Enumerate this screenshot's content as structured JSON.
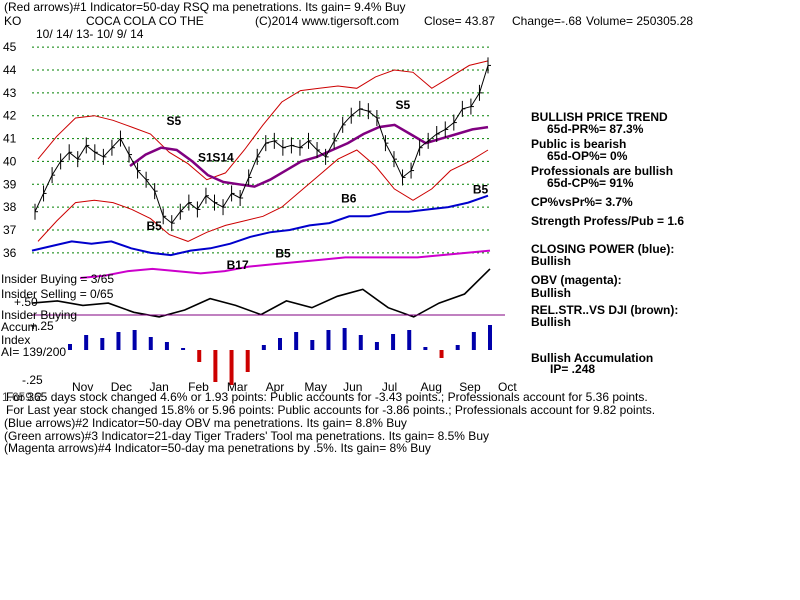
{
  "header": {
    "line1": "(Red arrows)#1 Indicator=50-day RSQ ma penetrations. Its gain= 9.4% Buy",
    "ticker": "KO",
    "company": "COCA COLA CO THE",
    "copyright": "(C)2014 www.tigersoft.com",
    "close_text": "Close=  43.87",
    "change_text": "Change=-.68",
    "volume_text": "Volume= 250305.28",
    "date_range": "10/ 14/ 13- 10/ 9/ 14"
  },
  "chart_data": {
    "type": "line",
    "y_ticks": [
      "45",
      "44",
      "43",
      "42",
      "41",
      "40",
      "39",
      "38",
      "37",
      "36"
    ],
    "y_tick_values": [
      45,
      44,
      43,
      42,
      41,
      40,
      39,
      38,
      37,
      36
    ],
    "x_ticks": [
      "Nov",
      "Dec",
      "Jan",
      "Feb",
      "Mar",
      "Apr",
      "May",
      "Jun",
      "Jul",
      "Aug",
      "Sep",
      "Oct"
    ],
    "ylim": [
      35.6,
      45.4
    ],
    "price": [
      37.8,
      38.6,
      39.4,
      40.0,
      40.4,
      40.1,
      40.7,
      40.4,
      40.2,
      40.6,
      41.0,
      40.3,
      39.6,
      39.2,
      38.7,
      37.6,
      37.3,
      37.8,
      38.2,
      37.9,
      38.5,
      38.2,
      38.0,
      38.6,
      38.4,
      39.3,
      40.2,
      40.8,
      40.9,
      40.6,
      40.7,
      40.6,
      40.9,
      40.5,
      40.2,
      40.9,
      41.6,
      42.0,
      42.3,
      42.2,
      41.9,
      40.8,
      40.1,
      39.3,
      39.6,
      40.6,
      40.9,
      41.2,
      41.4,
      41.7,
      42.3,
      42.4,
      43.0,
      44.2
    ],
    "upper_band": [
      40.1,
      41.1,
      41.9,
      42.0,
      41.8,
      41.5,
      41.2,
      40.4,
      39.9,
      39.2,
      39.5,
      40.5,
      41.6,
      42.6,
      43.1,
      43.2,
      43.3,
      43.2,
      43.7,
      44.0,
      43.9,
      43.2,
      43.7,
      44.2,
      44.4
    ],
    "lower_band": [
      36.5,
      37.4,
      38.2,
      38.3,
      38.2,
      37.9,
      37.5,
      36.8,
      36.5,
      36.9,
      37.2,
      37.4,
      37.6,
      38.0,
      38.7,
      39.4,
      40.1,
      40.5,
      39.8,
      38.8,
      38.3,
      38.8,
      39.6,
      40.0,
      40.5
    ],
    "ma50": [
      39.8,
      40.3,
      40.6,
      40.5,
      40.0,
      39.4,
      39.1,
      39.0,
      38.9,
      39.2,
      39.6,
      40.0,
      40.2,
      40.5,
      40.8,
      41.2,
      41.5,
      41.6,
      41.2,
      40.8,
      41.0,
      41.2,
      41.4,
      41.5
    ],
    "closing_power": [
      36.1,
      36.3,
      36.5,
      36.4,
      36.5,
      36.2,
      36.0,
      35.9,
      36.1,
      36.2,
      36.4,
      36.7,
      36.9,
      37.0,
      37.2,
      37.3,
      37.6,
      37.6,
      37.8,
      37.8,
      37.9,
      38.0,
      38.2,
      38.5
    ],
    "obv": [
      34.9,
      35.0,
      35.2,
      35.3,
      35.2,
      35.1,
      35.2,
      35.4,
      35.5,
      35.6,
      35.7,
      35.8,
      35.8,
      35.8,
      35.8,
      35.9,
      36.0,
      36.1
    ],
    "rel_str": [
      33.8,
      33.9,
      33.7,
      33.8,
      33.4,
      33.2,
      33.5,
      34.0,
      33.7,
      33.3,
      33.9,
      33.6,
      34.1,
      34.4,
      33.6,
      33.2,
      33.8,
      34.2,
      35.3
    ],
    "accum_index": [
      0.06,
      0.15,
      0.12,
      0.18,
      0.2,
      0.13,
      0.08,
      0.02,
      -0.12,
      -0.32,
      -0.35,
      -0.22,
      0.05,
      0.12,
      0.18,
      0.1,
      0.2,
      0.22,
      0.15,
      0.08,
      0.16,
      0.2,
      0.03,
      -0.08,
      0.05,
      0.18,
      0.25
    ],
    "accum_labels": [
      "+.50",
      "+.25",
      "-.25"
    ],
    "signals": [
      {
        "text": "S5",
        "color": "#000000",
        "x": 47,
        "price": 41.6
      },
      {
        "text": "S1",
        "color": "#000000",
        "x": 58,
        "price": 40.0
      },
      {
        "text": "S14",
        "color": "#000000",
        "x": 63,
        "price": 40.0
      },
      {
        "text": "B5",
        "color": "#000000",
        "x": 40,
        "price": 37.0
      },
      {
        "text": "B17",
        "color": "#000000",
        "x": 68,
        "price": 35.3
      },
      {
        "text": "B5",
        "color": "#000000",
        "x": 85,
        "price": 35.8
      },
      {
        "text": "B6",
        "color": "#000000",
        "x": 108,
        "price": 38.2
      },
      {
        "text": "S5",
        "color": "#000000",
        "x": 127,
        "price": 42.3
      },
      {
        "text": "B5",
        "color": "#000000",
        "x": 154,
        "price": 38.6
      }
    ]
  },
  "right_panel": {
    "trend_title": "BULLISH PRICE TREND",
    "trend_value": "65d-PR%= 87.3%",
    "public_title": "Public is bearish",
    "public_value": "65d-OP%= 0%",
    "pro_title": "Professionals are bullish",
    "pro_value": "65d-CP%= 91%",
    "cp_vs_pr": "CP%vsPr%=  3.7%",
    "strength": "Strength Profess/Pub = 1.6",
    "closing_power_title": "CLOSING POWER (blue):",
    "closing_power_value": "Bullish",
    "obv_title": "OBV (magenta):",
    "obv_value": "Bullish",
    "relstr_title": "REL.STR..VS DJI (brown):",
    "relstr_value": "Bullish",
    "accum_title": "Bullish Accumulation",
    "accum_value": "IP=  .248"
  },
  "lower_panel": {
    "insider_buying": "Insider Buying = 3/65",
    "insider_selling": "Insider Selling = 0/65",
    "insider_buying2": "Insider Buying",
    "accum_label": "Accum",
    "index_label": "Index",
    "ai_value": "AI= 139/200"
  },
  "footer": {
    "line1_prefix": "1.659.2",
    "line1": "For 365 days stock changed  4.6% or  1.93 points:  Public accounts for -3.43 points.;  Professionals account for  5.36 points.",
    "line2": "For Last year stock changed  15.8% or  5.96 points:  Public accounts for -3.86 points.;  Professionals account for  9.82 points.",
    "line3": "(Blue arrows)#2 Indicator=50-day OBV ma penetrations. Its gain= 8.8% Buy",
    "line4": "(Green arrows)#3 Indicator=21-day Tiger Traders' Tool ma penetrations. Its gain= 8.5% Buy",
    "line5": "(Magenta arrows)#4 Indicator=50-day ma penetrations by .5%. Its gain= 8% Buy"
  },
  "colors": {
    "price": "#000000",
    "band": "#cc0000",
    "ma50": "#800080",
    "closing_power": "#0000cc",
    "obv": "#cc00cc",
    "grid": "#008000",
    "accum_pos": "#0000aa",
    "accum_neg": "#cc0000",
    "refline": "#800080"
  }
}
